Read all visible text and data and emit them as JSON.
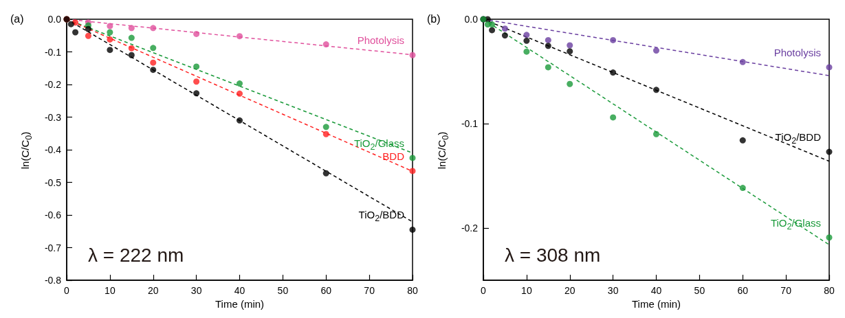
{
  "chart_data": [
    {
      "type": "scatter",
      "title": "(a)",
      "xlabel": "Time (min)",
      "ylabel": "ln(C/C$_{0}$)",
      "annotations": [
        "λ = 222 nm"
      ],
      "xlim": [
        0,
        80
      ],
      "xticks": [
        0,
        10,
        20,
        30,
        40,
        50,
        60,
        70,
        80
      ],
      "ylim": [
        -0.8,
        0
      ],
      "yticks": [
        {
          "value": 0,
          "label": "0.0"
        },
        {
          "value": -0.1,
          "label": "-0.1"
        },
        {
          "value": -0.2,
          "label": "-0.2"
        },
        {
          "value": -0.3,
          "label": "-0.3"
        },
        {
          "value": -0.4,
          "label": "-0.4"
        },
        {
          "value": -0.5,
          "label": "-0.5"
        },
        {
          "value": -0.6,
          "label": "-0.6"
        },
        {
          "value": -0.7,
          "label": "-0.7"
        },
        {
          "value": -0.8,
          "label": "-0.8"
        }
      ],
      "grid": false,
      "legend": false,
      "marker": "circle",
      "series": [
        {
          "name": "Photolysis",
          "color": "#e0509c",
          "x": [
            0,
            5,
            10,
            15,
            20,
            30,
            40,
            60,
            80
          ],
          "values": [
            0,
            -0.01,
            -0.021,
            -0.027,
            -0.027,
            -0.045,
            -0.052,
            -0.077,
            -0.11
          ]
        },
        {
          "name": "TiO$_{2}$/Glass",
          "color": "#1a9a3a",
          "x": [
            0,
            2,
            5,
            10,
            15,
            20,
            30,
            40,
            60,
            80
          ],
          "values": [
            0,
            null,
            -0.019,
            -0.04,
            -0.057,
            -0.088,
            -0.145,
            -0.197,
            -0.33,
            -0.425
          ]
        },
        {
          "name": "BDD",
          "color": "#ff2020",
          "x": [
            0,
            1,
            2,
            5,
            10,
            15,
            20,
            30,
            40,
            60,
            80
          ],
          "values": [
            0,
            null,
            -0.01,
            -0.051,
            -0.062,
            -0.089,
            -0.133,
            -0.191,
            -0.228,
            -0.352,
            -0.465
          ]
        },
        {
          "name": "TiO$_{2}$/BDD",
          "color": "#000000",
          "x": [
            0,
            1,
            2,
            5,
            10,
            15,
            20,
            30,
            40,
            60,
            80
          ],
          "values": [
            0,
            -0.015,
            -0.04,
            -0.03,
            -0.094,
            -0.11,
            -0.155,
            -0.227,
            -0.31,
            -0.472,
            -0.645
          ]
        },
        {
          "type": "line",
          "color": "#e0509c",
          "line_style": "dashed",
          "marker": "none",
          "x": [
            0,
            80
          ],
          "values": [
            0,
            -0.109
          ]
        },
        {
          "type": "line",
          "color": "#1a9a3a",
          "line_style": "dashed",
          "marker": "none",
          "x": [
            0,
            80
          ],
          "values": [
            0,
            -0.41
          ]
        },
        {
          "type": "line",
          "color": "#ff2020",
          "line_style": "dashed",
          "marker": "none",
          "x": [
            0,
            80
          ],
          "values": [
            0,
            -0.466
          ]
        },
        {
          "type": "line",
          "color": "#000000",
          "line_style": "dashed",
          "marker": "none",
          "x": [
            0,
            80
          ],
          "values": [
            0,
            -0.621
          ]
        }
      ]
    },
    {
      "type": "scatter",
      "title": "(b)",
      "xlabel": "Time (min)",
      "ylabel": "ln(C/C$_{0}$)",
      "annotations": [
        "λ = 308 nm"
      ],
      "xlim": [
        0,
        80
      ],
      "xticks": [
        0,
        10,
        20,
        30,
        40,
        50,
        60,
        70,
        80
      ],
      "ylim": [
        -0.25,
        0
      ],
      "yticks": [
        {
          "value": 0,
          "label": "0.0"
        },
        {
          "value": -0.1,
          "label": "-0.1"
        },
        {
          "value": -0.2,
          "label": "-0.2"
        }
      ],
      "grid": false,
      "legend": false,
      "marker": "circle",
      "series": [
        {
          "name": "Photolysis",
          "color": "#6a3fa0",
          "x": [
            0,
            5,
            10,
            15,
            20,
            30,
            40,
            60,
            80
          ],
          "values": [
            0,
            -0.009,
            -0.015,
            -0.02,
            -0.025,
            -0.02,
            -0.03,
            -0.041,
            -0.046
          ]
        },
        {
          "name": "TiO$_{2}$/BDD",
          "color": "#000000",
          "x": [
            0,
            1,
            2,
            5,
            10,
            15,
            20,
            30,
            40,
            60,
            80
          ],
          "values": [
            0,
            0,
            -0.0105,
            -0.0155,
            -0.0206,
            -0.0255,
            -0.0307,
            -0.051,
            -0.0676,
            -0.116,
            -0.127
          ]
        },
        {
          "name": "TiO$_{2}$/Glass",
          "color": "#1a9a3a",
          "x": [
            0,
            1,
            2,
            10,
            15,
            20,
            30,
            40,
            60,
            80
          ],
          "values": [
            0,
            -0.005,
            -0.005,
            -0.031,
            -0.046,
            -0.062,
            -0.094,
            -0.11,
            -0.1615,
            -0.209
          ]
        },
        {
          "type": "line",
          "color": "#6a3fa0",
          "line_style": "dashed",
          "marker": "none",
          "x": [
            0,
            80
          ],
          "values": [
            0,
            -0.054
          ]
        },
        {
          "type": "line",
          "color": "#000000",
          "line_style": "dashed",
          "marker": "none",
          "x": [
            0,
            80
          ],
          "values": [
            0,
            -0.136
          ]
        },
        {
          "type": "line",
          "color": "#1a9a3a",
          "line_style": "dashed",
          "marker": "none",
          "x": [
            0,
            80
          ],
          "values": [
            0,
            -0.216
          ]
        }
      ]
    }
  ]
}
